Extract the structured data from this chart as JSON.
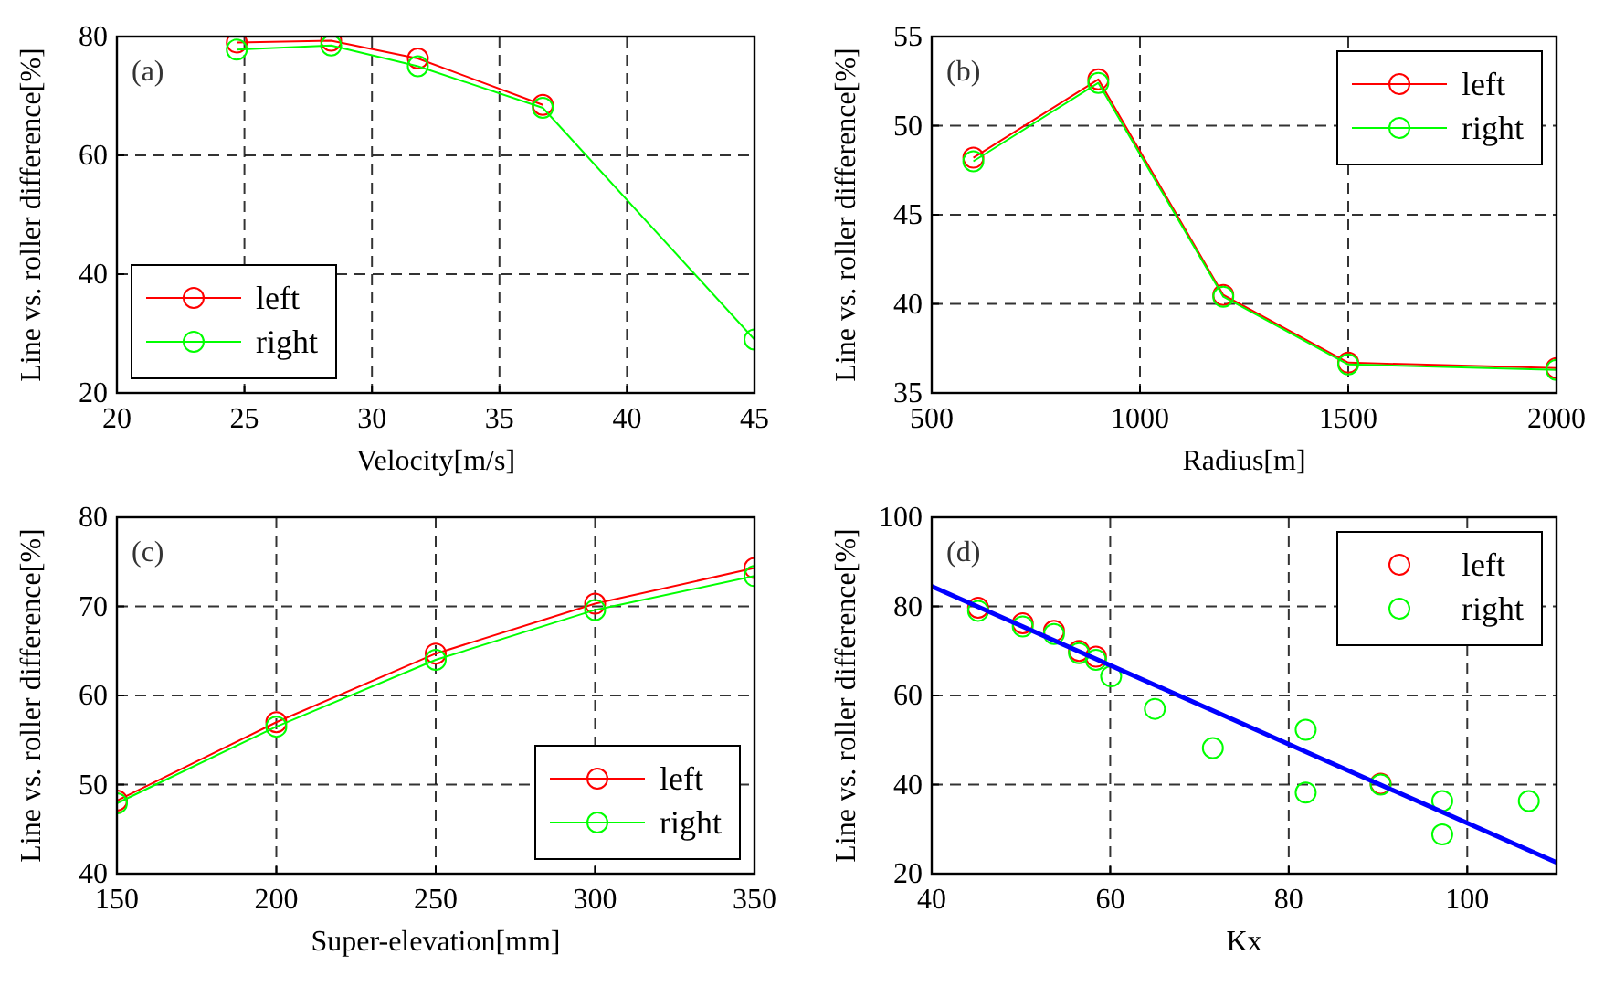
{
  "chart_data": [
    {
      "type": "line",
      "xlabel": "Velocity[m/s]",
      "ylabel": "Line vs. roller difference[%]",
      "annotations": [
        "(a)"
      ],
      "x": [
        24.7,
        28.4,
        31.8,
        36.7,
        45
      ],
      "xlim": [
        20,
        45
      ],
      "xticks": [
        20,
        25,
        30,
        35,
        40,
        45
      ],
      "ylim": [
        20,
        80
      ],
      "yticks": [
        20,
        40,
        60,
        80
      ],
      "grid": true,
      "legend": "bottom left",
      "marker": "circle",
      "line_style": "solid",
      "series": [
        {
          "name": "left",
          "color": "#ff0000",
          "values": [
            79,
            79.3,
            76.3,
            68.5,
            null
          ]
        },
        {
          "name": "right",
          "color": "#00ff00",
          "values": [
            77.8,
            78.5,
            75,
            68,
            29
          ]
        }
      ]
    },
    {
      "type": "line",
      "xlabel": "Radius[m]",
      "ylabel": "Line vs. roller difference[%]",
      "annotations": [
        "(b)"
      ],
      "x": [
        600,
        900,
        1200,
        1500,
        2000
      ],
      "xlim": [
        500,
        2000
      ],
      "xticks": [
        500,
        1000,
        1500,
        2000
      ],
      "ylim": [
        35,
        55
      ],
      "yticks": [
        35,
        40,
        45,
        50,
        55
      ],
      "grid": true,
      "legend": "top right",
      "marker": "circle",
      "line_style": "solid",
      "series": [
        {
          "name": "left",
          "color": "#ff0000",
          "values": [
            48.2,
            52.6,
            40.5,
            36.7,
            36.4
          ]
        },
        {
          "name": "right",
          "color": "#00ff00",
          "values": [
            48,
            52.4,
            40.4,
            36.6,
            36.3
          ]
        }
      ]
    },
    {
      "type": "line",
      "xlabel": "Super-elevation[mm]",
      "ylabel": "Line vs. roller difference[%]",
      "annotations": [
        "(c)"
      ],
      "x": [
        150,
        200,
        250,
        300,
        350
      ],
      "xlim": [
        150,
        350
      ],
      "xticks": [
        150,
        200,
        250,
        300,
        350
      ],
      "ylim": [
        40,
        80
      ],
      "yticks": [
        40,
        50,
        60,
        70,
        80
      ],
      "grid": true,
      "legend": "bottom right",
      "marker": "circle",
      "line_style": "solid",
      "series": [
        {
          "name": "left",
          "color": "#ff0000",
          "values": [
            48.2,
            57,
            64.7,
            70.3,
            74.3
          ]
        },
        {
          "name": "right",
          "color": "#00ff00",
          "values": [
            47.9,
            56.5,
            64,
            69.6,
            73.4
          ]
        }
      ]
    },
    {
      "type": "scatter",
      "xlabel": "Kx",
      "ylabel": "Line vs. roller difference[%]",
      "annotations": [
        "(d)"
      ],
      "xlim": [
        40,
        110
      ],
      "xticks": [
        40,
        60,
        80,
        100
      ],
      "ylim": [
        20,
        100
      ],
      "yticks": [
        20,
        40,
        60,
        80,
        100
      ],
      "grid": true,
      "legend": "top right",
      "marker": "circle",
      "series": [
        {
          "name": "left",
          "color": "#ff0000",
          "x": [
            45.2,
            50.2,
            53.7,
            56.5,
            58.4,
            90.3
          ],
          "values": [
            79.7,
            76.2,
            74.5,
            70,
            68.7,
            40.2
          ]
        },
        {
          "name": "right",
          "color": "#00ff00",
          "x": [
            45.2,
            50.2,
            53.7,
            56.5,
            58.4,
            60.1,
            65,
            71.5,
            81.9,
            81.9,
            90.3,
            97.2,
            97.2,
            106.9
          ],
          "values": [
            79,
            75.5,
            73.8,
            69.5,
            68,
            64.3,
            57,
            48.2,
            52.3,
            38.2,
            40,
            36.3,
            28.8,
            36.3
          ]
        },
        {
          "type": "line",
          "color": "#0000ff",
          "x": [
            40,
            110
          ],
          "values": [
            84.5,
            22.5
          ],
          "marker": "none",
          "line_style": "solid"
        }
      ]
    }
  ]
}
